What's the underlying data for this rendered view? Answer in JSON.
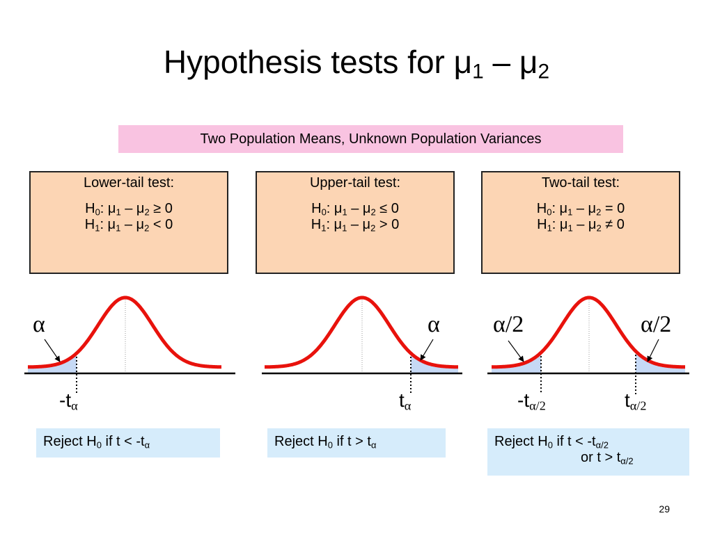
{
  "title": [
    "Hypothesis tests for μ",
    "1",
    " – μ",
    "2"
  ],
  "banner": "Two Population Means, Unknown Population Variances",
  "tests": [
    {
      "heading": "Lower-tail test:",
      "h0": [
        "H",
        "0",
        ": μ",
        "1",
        " – μ",
        "2",
        " ≥ 0"
      ],
      "h1": [
        "H",
        "1",
        ": μ",
        "1",
        " – μ",
        "2",
        " < 0"
      ],
      "alpha_labels": [
        [
          "α"
        ]
      ],
      "critical_labels": [
        [
          "-t",
          "α"
        ]
      ],
      "rule": [
        [
          "Reject H",
          "0",
          " if t < -t",
          "α"
        ]
      ]
    },
    {
      "heading": "Upper-tail test:",
      "h0": [
        "H",
        "0",
        ": μ",
        "1",
        " – μ",
        "2",
        " ≤ 0"
      ],
      "h1": [
        "H",
        "1",
        ": μ",
        "1",
        " – μ",
        "2",
        " > 0"
      ],
      "alpha_labels": [
        [
          "α"
        ]
      ],
      "critical_labels": [
        [
          "t",
          "α"
        ]
      ],
      "rule": [
        [
          "Reject H",
          "0",
          " if t > t",
          "α"
        ]
      ]
    },
    {
      "heading": "Two-tail test:",
      "h0": [
        "H",
        "0",
        ": μ",
        "1",
        " – μ",
        "2",
        " = 0"
      ],
      "h1": [
        "H",
        "1",
        ": μ",
        "1",
        " – μ",
        "2",
        " ≠ 0"
      ],
      "alpha_labels": [
        [
          "α/2"
        ],
        [
          "α/2"
        ]
      ],
      "critical_labels": [
        [
          "-t",
          "α/2"
        ],
        [
          "t",
          "α/2"
        ]
      ],
      "rule": [
        [
          "Reject H",
          "0",
          " if t < -t",
          "α/2"
        ],
        [
          "or t > t",
          "α/2"
        ]
      ]
    }
  ],
  "page_number": "29"
}
